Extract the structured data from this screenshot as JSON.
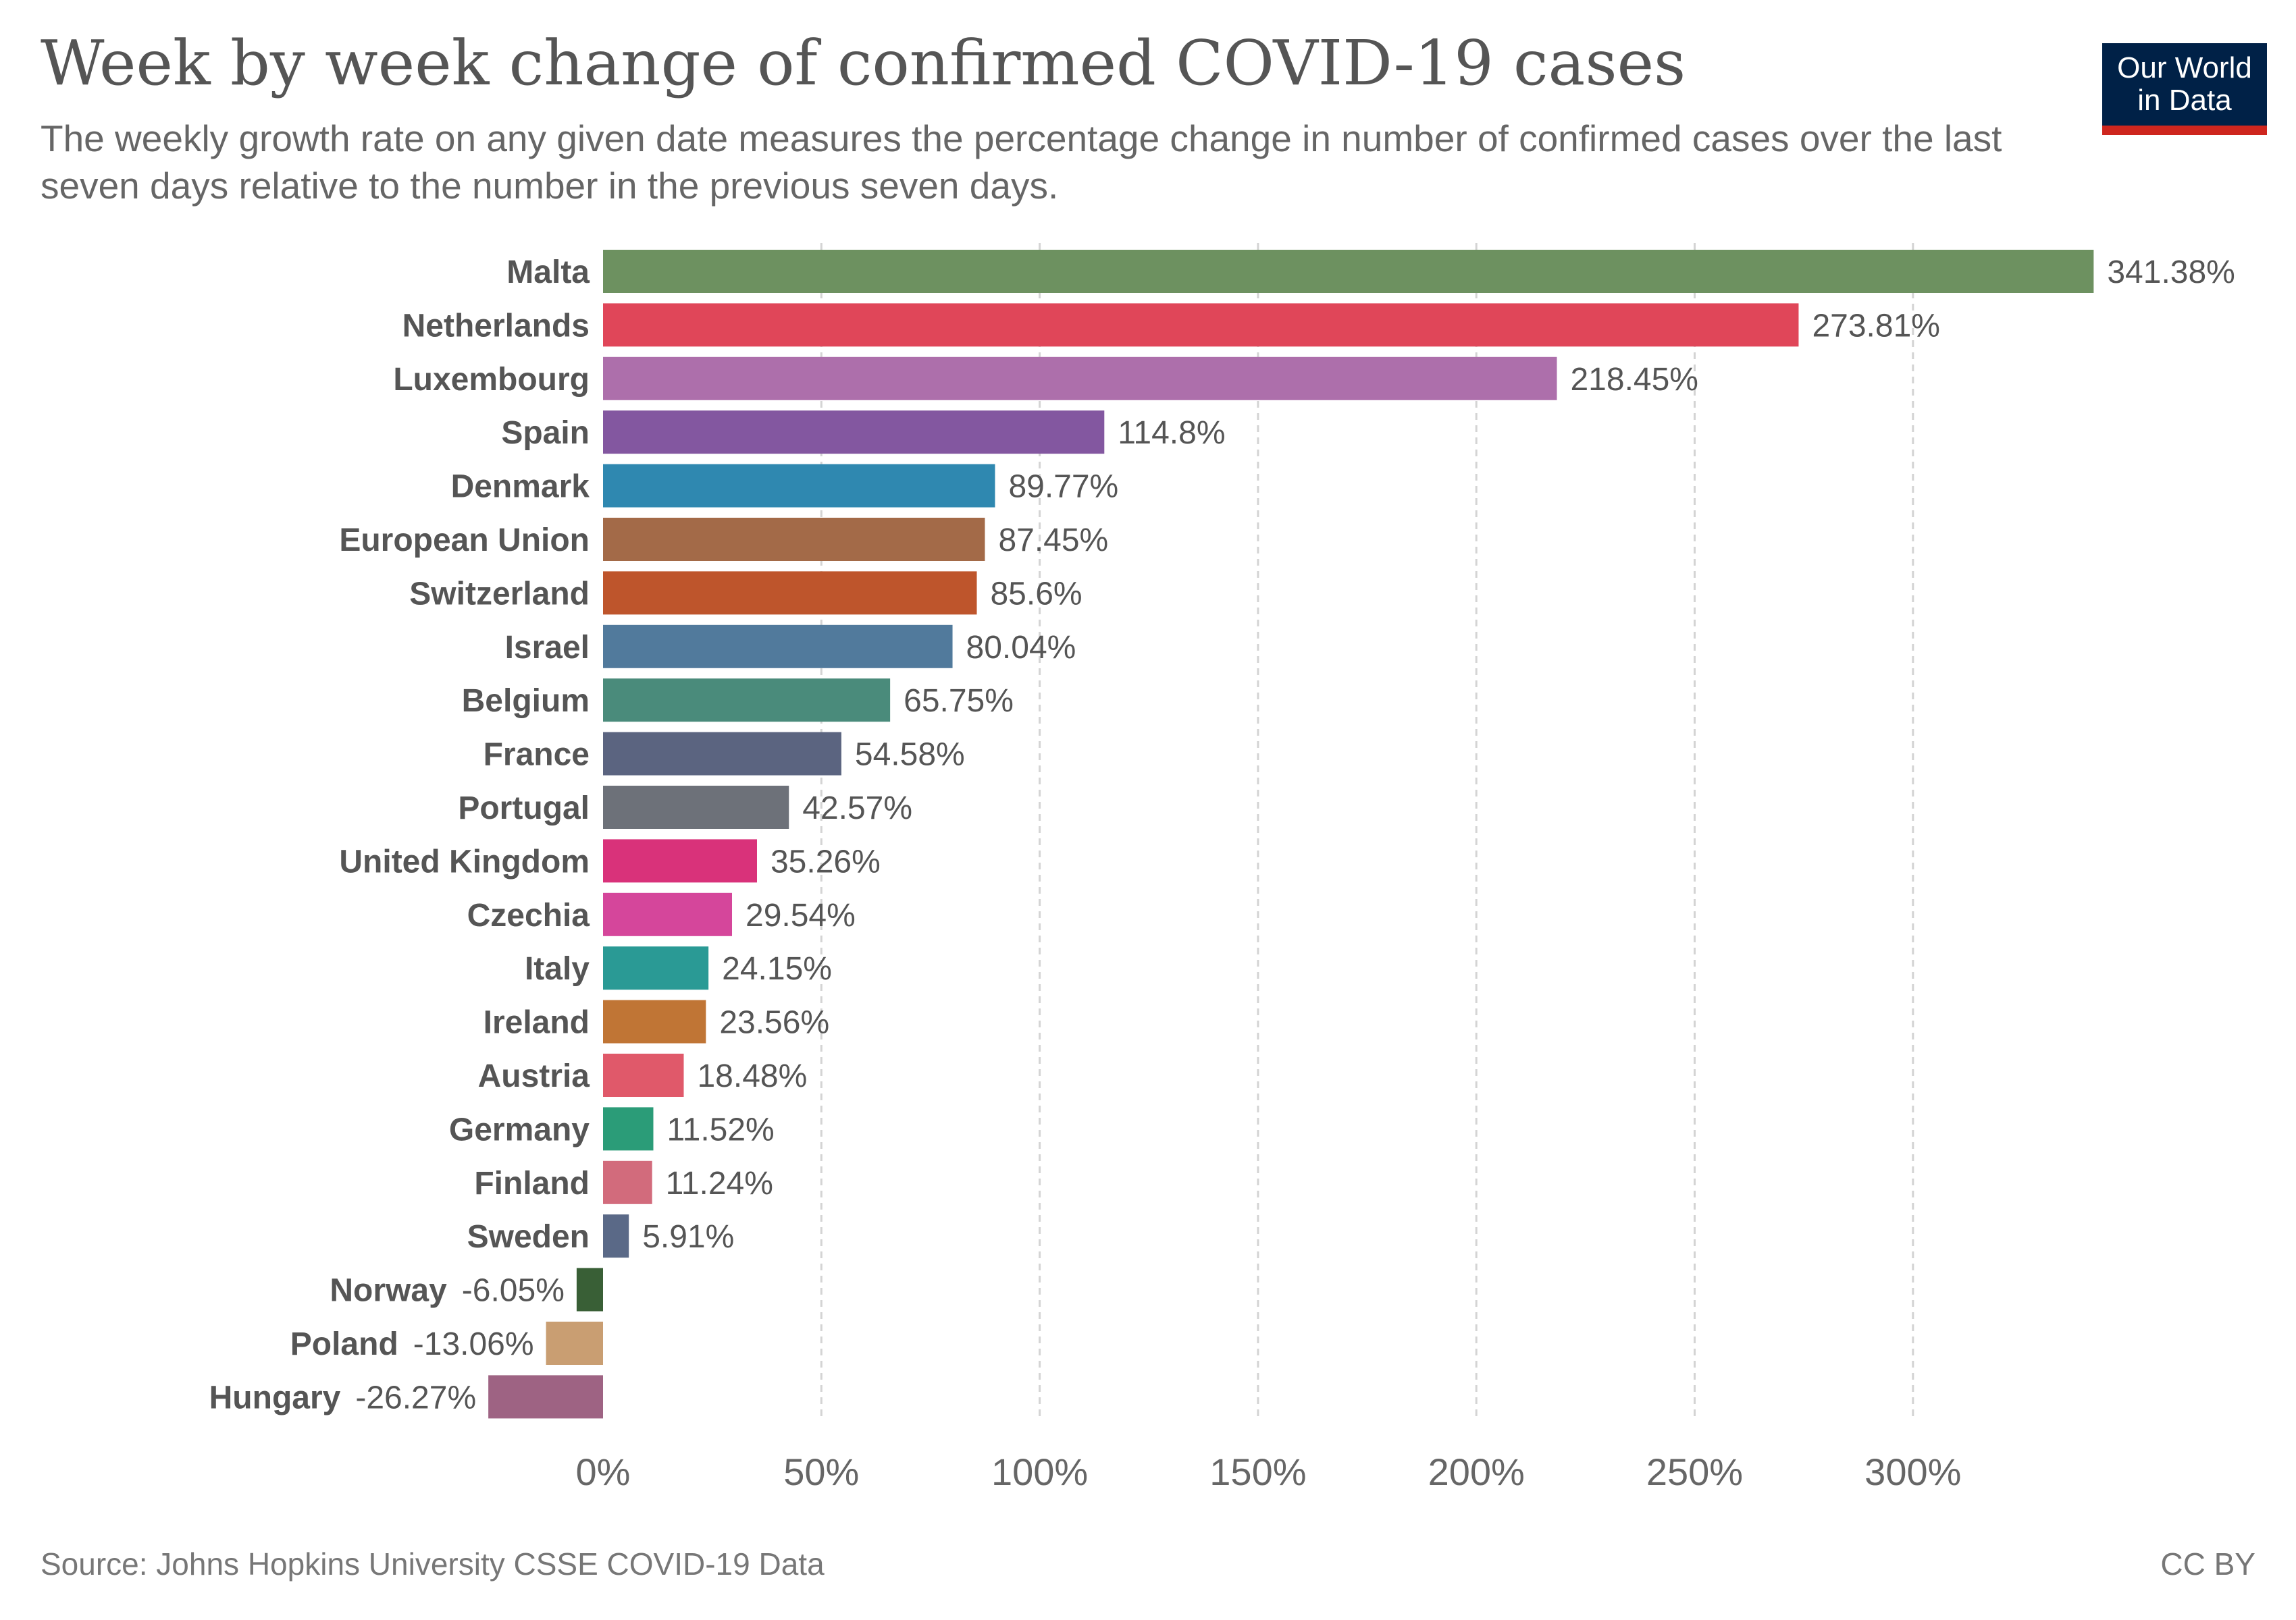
{
  "header": {
    "title": "Week by week change of confirmed COVID-19 cases",
    "subtitle": "The weekly growth rate on any given date measures the percentage change in number of confirmed cases over the last seven days relative to the number in the previous seven days."
  },
  "logo": {
    "line1": "Our World",
    "line2": "in Data"
  },
  "footer": {
    "source": "Source: Johns Hopkins University CSSE COVID-19 Data",
    "license": "CC BY"
  },
  "chart_data": {
    "type": "bar",
    "orientation": "horizontal",
    "title": "Week by week change of confirmed COVID-19 cases",
    "xlabel": "",
    "ylabel": "",
    "xlim": [
      -26.27,
      341.38
    ],
    "x_ticks": [
      0,
      50,
      100,
      150,
      200,
      250,
      300
    ],
    "x_tick_labels": [
      "0%",
      "50%",
      "100%",
      "150%",
      "200%",
      "250%",
      "300%"
    ],
    "grid": "vertical-dashed",
    "categories": [
      "Malta",
      "Netherlands",
      "Luxembourg",
      "Spain",
      "Denmark",
      "European Union",
      "Switzerland",
      "Israel",
      "Belgium",
      "France",
      "Portugal",
      "United Kingdom",
      "Czechia",
      "Italy",
      "Ireland",
      "Austria",
      "Germany",
      "Finland",
      "Sweden",
      "Norway",
      "Poland",
      "Hungary"
    ],
    "values": [
      341.38,
      273.81,
      218.45,
      114.8,
      89.77,
      87.45,
      85.6,
      80.04,
      65.75,
      54.58,
      42.57,
      35.26,
      29.54,
      24.15,
      23.56,
      18.48,
      11.52,
      11.24,
      5.91,
      -6.05,
      -13.06,
      -26.27
    ],
    "value_labels": [
      "341.38%",
      "273.81%",
      "218.45%",
      "114.8%",
      "89.77%",
      "87.45%",
      "85.6%",
      "80.04%",
      "65.75%",
      "54.58%",
      "42.57%",
      "35.26%",
      "29.54%",
      "24.15%",
      "23.56%",
      "18.48%",
      "11.52%",
      "11.24%",
      "5.91%",
      "-6.05%",
      "-13.06%",
      "-26.27%"
    ],
    "colors": [
      "#6d9160",
      "#e04659",
      "#ad6fab",
      "#8357a0",
      "#2f88b0",
      "#a36a48",
      "#be552c",
      "#517a9c",
      "#4a8b7b",
      "#5b6480",
      "#6d7179",
      "#d9327a",
      "#d5469b",
      "#2a9a95",
      "#c07535",
      "#e0596a",
      "#2b9c78",
      "#d26b7c",
      "#5a6987",
      "#395f36",
      "#c99e72",
      "#9e6383"
    ]
  }
}
